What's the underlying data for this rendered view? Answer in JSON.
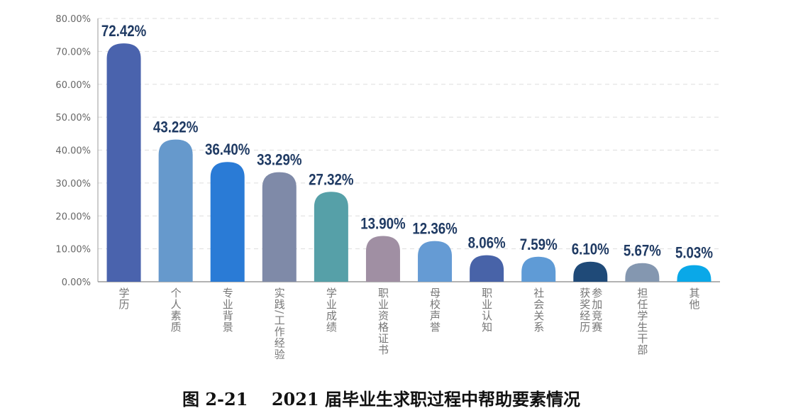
{
  "chart_data": {
    "type": "bar",
    "title": "图 2-21    2021 届毕业生求职过程中帮助要素情况",
    "xlabel": "",
    "ylabel": "",
    "ylim": [
      0,
      80
    ],
    "yticks": [
      "0.00%",
      "10.00%",
      "20.00%",
      "30.00%",
      "40.00%",
      "50.00%",
      "60.00%",
      "70.00%",
      "80.00%"
    ],
    "grid": true,
    "categories": [
      "学历",
      "个人素质",
      "专业背景",
      "实践/工作经验",
      "学业成绩",
      "职业资格证书",
      "母校声誉",
      "职业认知",
      "社会关系",
      "参加竞赛获奖经历",
      "担任学生干部",
      "其他"
    ],
    "values": [
      72.42,
      43.22,
      36.4,
      33.29,
      27.32,
      13.9,
      12.36,
      8.06,
      7.59,
      6.1,
      5.67,
      5.03
    ],
    "data_labels": [
      "72.42%",
      "43.22%",
      "36.40%",
      "33.29%",
      "27.32%",
      "13.90%",
      "12.36%",
      "8.06%",
      "7.59%",
      "6.10%",
      "5.67%",
      "5.03%"
    ],
    "colors": [
      "#4a63ad",
      "#6699cc",
      "#2a7bd6",
      "#7f8aa8",
      "#56a0a8",
      "#a08fa3",
      "#659bd4",
      "#4863a8",
      "#5f9bd6",
      "#1f4a78",
      "#8497b0",
      "#0aa8e8"
    ],
    "label_color": "#1f3a63"
  }
}
